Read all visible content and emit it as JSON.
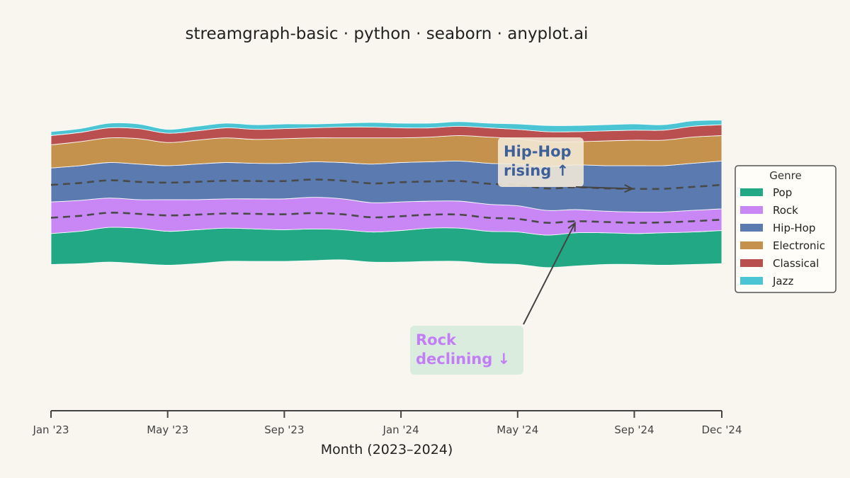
{
  "chart_data": {
    "type": "area",
    "subtype": "streamgraph",
    "title": "streamgraph-basic · python · seaborn · anyplot.ai",
    "xlabel": "Month (2023–2024)",
    "ylabel": "",
    "x_ticks": [
      "Jan '23",
      "May '23",
      "Sep '23",
      "Jan '24",
      "May '24",
      "Sep '24",
      "Dec '24"
    ],
    "x_tick_months": [
      0,
      4,
      8,
      12,
      16,
      20,
      23
    ],
    "months": [
      "2023-01",
      "2023-02",
      "2023-03",
      "2023-04",
      "2023-05",
      "2023-06",
      "2023-07",
      "2023-08",
      "2023-09",
      "2023-10",
      "2023-11",
      "2023-12",
      "2024-01",
      "2024-02",
      "2024-03",
      "2024-04",
      "2024-05",
      "2024-06",
      "2024-07",
      "2024-08",
      "2024-09",
      "2024-10",
      "2024-11",
      "2024-12"
    ],
    "baseline": [
      -38,
      -37,
      -35,
      -37,
      -39,
      -37,
      -34,
      -34,
      -34,
      -33,
      -32,
      -35,
      -35,
      -34,
      -34,
      -37,
      -38,
      -42,
      -40,
      -38,
      -38,
      -39,
      -38,
      -37
    ],
    "series": [
      {
        "name": "Pop",
        "color": "#22a884",
        "values": [
          40,
          42,
          45,
          46,
          44,
          44,
          43,
          42,
          41,
          41,
          39,
          39,
          41,
          43,
          43,
          42,
          42,
          42,
          43,
          41,
          40,
          42,
          42,
          43
        ]
      },
      {
        "name": "Rock",
        "color": "#c987f5",
        "values": [
          41,
          40,
          38,
          37,
          41,
          39,
          38,
          39,
          40,
          41,
          40,
          38,
          37,
          35,
          35,
          35,
          34,
          32,
          30,
          28,
          28,
          27,
          28,
          28
        ]
      },
      {
        "name": "Hip-Hop",
        "color": "#5b7bb0",
        "values": [
          44,
          45,
          46,
          46,
          44,
          46,
          47,
          46,
          46,
          46,
          47,
          50,
          51,
          51,
          52,
          53,
          54,
          57,
          58,
          59,
          60,
          60,
          61,
          62
        ]
      },
      {
        "name": "Electronic",
        "color": "#c4924d",
        "values": [
          30,
          31,
          32,
          33,
          30,
          31,
          32,
          31,
          32,
          31,
          32,
          34,
          32,
          32,
          33,
          34,
          33,
          32,
          30,
          32,
          33,
          33,
          34,
          33
        ]
      },
      {
        "name": "Classical",
        "color": "#b94f4f",
        "values": [
          12,
          12,
          13,
          13,
          12,
          12,
          13,
          13,
          13,
          13,
          14,
          14,
          13,
          12,
          12,
          12,
          12,
          13,
          13,
          13,
          13,
          13,
          14,
          14
        ]
      },
      {
        "name": "Jazz",
        "color": "#4bc5d3",
        "values": [
          5,
          5,
          6,
          6,
          5,
          6,
          6,
          6,
          6,
          5,
          5,
          6,
          6,
          6,
          6,
          6,
          7,
          8,
          8,
          8,
          8,
          7,
          7,
          6
        ]
      }
    ],
    "legend": {
      "title": "Genre",
      "position": "right"
    },
    "annotations": [
      {
        "lines": [
          "Hip-Hop",
          "rising ↑"
        ],
        "color": "#3d5f9a",
        "bg": "#f4ead8",
        "target_series": "Hip-Hop",
        "target_month": 20
      },
      {
        "lines": [
          "Rock",
          "declining ↓"
        ],
        "color": "#c37ef5",
        "bg": "#d4ebdc",
        "target_series": "Rock",
        "target_month": 18
      }
    ],
    "grid": false
  }
}
